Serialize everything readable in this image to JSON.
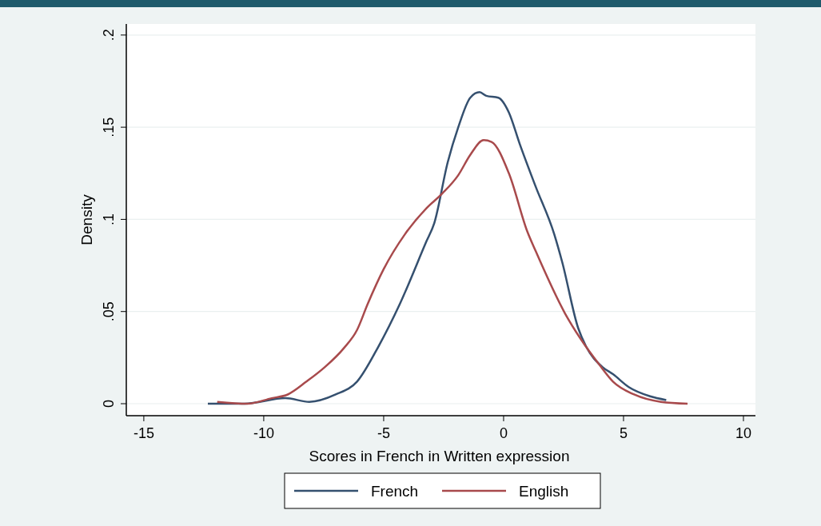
{
  "chart_data": {
    "type": "line",
    "xlabel": "Scores in French in Written expression",
    "ylabel": "Density",
    "xlim": [
      -15.73,
      10.5
    ],
    "xticks": [
      -15,
      -10,
      -5,
      0,
      5,
      10
    ],
    "ylim": [
      -0.0065,
      0.206
    ],
    "yticks": [
      {
        "value": 0,
        "label": "0"
      },
      {
        "value": 0.05,
        "label": ".05"
      },
      {
        "value": 0.1,
        "label": ".1"
      },
      {
        "value": 0.15,
        "label": ".15"
      },
      {
        "value": 0.2,
        "label": ".2"
      }
    ],
    "grid": "y",
    "legend": "bottom",
    "line_style": "solid",
    "series": [
      {
        "name": "French",
        "color": "#35506f",
        "x": [
          -12.33,
          -10.8,
          -9.1,
          -8.1,
          -7.0,
          -6.11,
          -5.22,
          -4.33,
          -3.22,
          -2.89,
          -2.33,
          -1.89,
          -1.39,
          -1.0,
          -0.72,
          -0.22,
          0.22,
          0.67,
          1.33,
          2.11,
          2.44,
          3.11,
          3.44,
          4.11,
          4.56,
          5.22,
          6.11,
          6.78
        ],
        "values": [
          0,
          0,
          0.003,
          0.001,
          0.005,
          0.012,
          0.031,
          0.054,
          0.088,
          0.098,
          0.131,
          0.15,
          0.166,
          0.169,
          0.167,
          0.166,
          0.158,
          0.141,
          0.118,
          0.092,
          0.077,
          0.041,
          0.031,
          0.02,
          0.016,
          0.009,
          0.004,
          0.002
        ]
      },
      {
        "name": "English",
        "color": "#a84a4c",
        "x": [
          -11.94,
          -10.67,
          -9.67,
          -9.0,
          -8.22,
          -7.44,
          -6.67,
          -6.11,
          -5.67,
          -5.0,
          -4.11,
          -3.22,
          -2.56,
          -1.89,
          -1.39,
          -0.83,
          -0.5,
          0.22,
          1.0,
          1.33,
          2.56,
          3.22,
          4.0,
          4.56,
          5.44,
          6.56,
          7.67
        ],
        "values": [
          0.001,
          0,
          0.003,
          0.005,
          0.012,
          0.02,
          0.03,
          0.04,
          0.054,
          0.073,
          0.092,
          0.106,
          0.114,
          0.124,
          0.135,
          0.143,
          0.142,
          0.125,
          0.093,
          0.083,
          0.049,
          0.035,
          0.021,
          0.012,
          0.005,
          0.001,
          0
        ]
      }
    ]
  }
}
